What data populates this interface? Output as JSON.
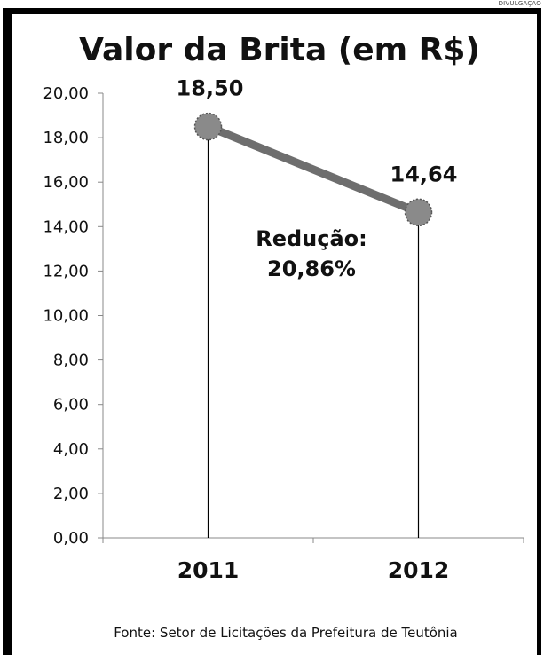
{
  "credit": "DIVULGAÇÃO",
  "chart_data": {
    "type": "line",
    "title": "Valor da Brita (em R$)",
    "categories": [
      "2011",
      "2012"
    ],
    "values": [
      18.5,
      14.64
    ],
    "data_labels": [
      "18,50",
      "14,64"
    ],
    "yticks": [
      "0,00",
      "2,00",
      "4,00",
      "6,00",
      "8,00",
      "10,00",
      "12,00",
      "14,00",
      "16,00",
      "18,00",
      "20,00"
    ],
    "ylim": [
      0,
      20
    ],
    "annotation": {
      "line1": "Redução:",
      "line2": "20,86%"
    },
    "source": "Fonte: Setor de Licitações  da Prefeitura de Teutônia",
    "series_color": "#6e6e6e",
    "marker_color": "#8a8a8a"
  }
}
